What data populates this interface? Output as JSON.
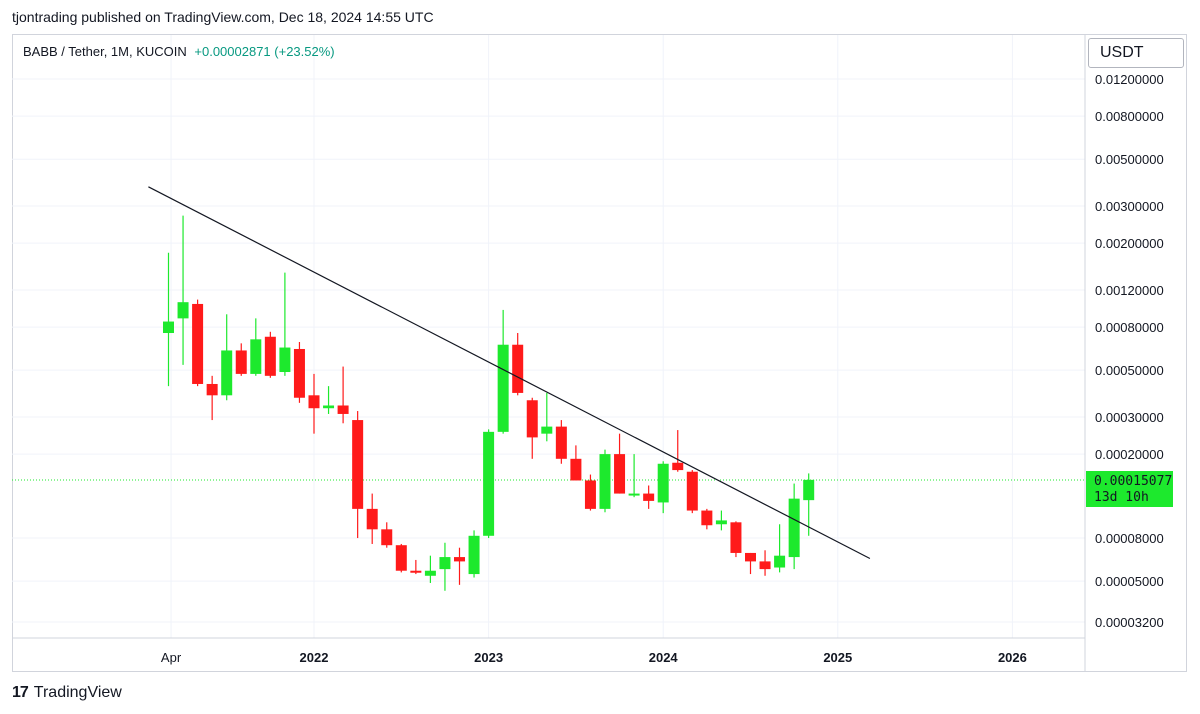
{
  "header": {
    "published_by": "tjontrading published on TradingView.com, Dec 18, 2024 14:55 UTC"
  },
  "legend": {
    "symbol": "BABB / Tether, 1M, KUCOIN",
    "change": "+0.00002871 (+23.52%)"
  },
  "currency_button": "USDT",
  "price_tag": {
    "price": "0.00015077",
    "countdown": "13d 10h"
  },
  "brand": {
    "logo_glyph": "17",
    "name": "TradingView"
  },
  "colors": {
    "up": "#1de92d",
    "down": "#ff1a1a",
    "grid": "#f0f3fa",
    "trendline": "#131722"
  },
  "chart_data": {
    "type": "candlestick",
    "scale": "log",
    "y_tick_labels": [
      "0.01200000",
      "0.00800000",
      "0.00500000",
      "0.00300000",
      "0.00200000",
      "0.00120000",
      "0.00080000",
      "0.00050000",
      "0.00030000",
      "0.00020000",
      "0.00008000",
      "0.00005000",
      "0.00003200"
    ],
    "x_tick_labels": [
      "Apr",
      "2022",
      "2023",
      "2024",
      "2025",
      "2026"
    ],
    "current_price": 0.00015077,
    "candles": [
      {
        "date": "2021-03",
        "open": 0.00075,
        "high": 0.0018,
        "low": 0.00042,
        "close": 0.00085
      },
      {
        "date": "2021-04",
        "open": 0.00088,
        "high": 0.0027,
        "low": 0.00053,
        "close": 0.00105
      },
      {
        "date": "2021-05",
        "open": 0.00103,
        "high": 0.00108,
        "low": 0.00042,
        "close": 0.00043
      },
      {
        "date": "2021-06",
        "open": 0.00043,
        "high": 0.00047,
        "low": 0.00029,
        "close": 0.00038
      },
      {
        "date": "2021-07",
        "open": 0.00038,
        "high": 0.00092,
        "low": 0.00036,
        "close": 0.00062
      },
      {
        "date": "2021-08",
        "open": 0.00062,
        "high": 0.00067,
        "low": 0.00047,
        "close": 0.00048
      },
      {
        "date": "2021-09",
        "open": 0.00048,
        "high": 0.00088,
        "low": 0.00047,
        "close": 0.0007
      },
      {
        "date": "2021-10",
        "open": 0.00072,
        "high": 0.00076,
        "low": 0.00046,
        "close": 0.00047
      },
      {
        "date": "2021-11",
        "open": 0.00049,
        "high": 0.00145,
        "low": 0.00047,
        "close": 0.00064
      },
      {
        "date": "2021-12",
        "open": 0.00063,
        "high": 0.00068,
        "low": 0.00035,
        "close": 0.00037
      },
      {
        "date": "2022-01",
        "open": 0.00038,
        "high": 0.00048,
        "low": 0.00025,
        "close": 0.00033
      },
      {
        "date": "2022-02",
        "open": 0.00033,
        "high": 0.00042,
        "low": 0.00031,
        "close": 0.00034
      },
      {
        "date": "2022-03",
        "open": 0.00034,
        "high": 0.00052,
        "low": 0.00028,
        "close": 0.00031
      },
      {
        "date": "2022-04",
        "open": 0.00029,
        "high": 0.00032,
        "low": 8e-05,
        "close": 0.00011
      },
      {
        "date": "2022-05",
        "open": 0.00011,
        "high": 0.00013,
        "low": 7.5e-05,
        "close": 8.8e-05
      },
      {
        "date": "2022-06",
        "open": 8.8e-05,
        "high": 9.5e-05,
        "low": 7.2e-05,
        "close": 7.4e-05
      },
      {
        "date": "2022-07",
        "open": 7.4e-05,
        "high": 7.5e-05,
        "low": 5.5e-05,
        "close": 5.6e-05
      },
      {
        "date": "2022-08",
        "open": 5.6e-05,
        "high": 6.3e-05,
        "low": 5.4e-05,
        "close": 5.5e-05
      },
      {
        "date": "2022-09",
        "open": 5.3e-05,
        "high": 6.6e-05,
        "low": 4.9e-05,
        "close": 5.6e-05
      },
      {
        "date": "2022-10",
        "open": 5.7e-05,
        "high": 7.6e-05,
        "low": 4.5e-05,
        "close": 6.5e-05
      },
      {
        "date": "2022-11",
        "open": 6.5e-05,
        "high": 7.2e-05,
        "low": 4.8e-05,
        "close": 6.2e-05
      },
      {
        "date": "2022-12",
        "open": 5.4e-05,
        "high": 8.7e-05,
        "low": 5.2e-05,
        "close": 8.2e-05
      },
      {
        "date": "2023-01",
        "open": 8.2e-05,
        "high": 0.000262,
        "low": 8e-05,
        "close": 0.000255
      },
      {
        "date": "2023-02",
        "open": 0.000255,
        "high": 0.000965,
        "low": 0.00025,
        "close": 0.00066
      },
      {
        "date": "2023-03",
        "open": 0.00066,
        "high": 0.00075,
        "low": 0.00038,
        "close": 0.00039
      },
      {
        "date": "2023-04",
        "open": 0.00036,
        "high": 0.00037,
        "low": 0.00019,
        "close": 0.00024
      },
      {
        "date": "2023-05",
        "open": 0.00025,
        "high": 0.00039,
        "low": 0.00023,
        "close": 0.00027
      },
      {
        "date": "2023-06",
        "open": 0.00027,
        "high": 0.00029,
        "low": 0.00018,
        "close": 0.00019
      },
      {
        "date": "2023-07",
        "open": 0.00019,
        "high": 0.00022,
        "low": 0.00015,
        "close": 0.00015
      },
      {
        "date": "2023-08",
        "open": 0.00015,
        "high": 0.00016,
        "low": 0.000108,
        "close": 0.00011
      },
      {
        "date": "2023-09",
        "open": 0.00011,
        "high": 0.00021,
        "low": 0.000106,
        "close": 0.0002
      },
      {
        "date": "2023-10",
        "open": 0.0002,
        "high": 0.00025,
        "low": 0.00013,
        "close": 0.00013
      },
      {
        "date": "2023-11",
        "open": 0.00013,
        "high": 0.0002,
        "low": 0.000125,
        "close": 0.00013
      },
      {
        "date": "2023-12",
        "open": 0.00013,
        "high": 0.000142,
        "low": 0.00011,
        "close": 0.00012
      },
      {
        "date": "2024-01",
        "open": 0.000118,
        "high": 0.000185,
        "low": 0.000105,
        "close": 0.00018
      },
      {
        "date": "2024-02",
        "open": 0.000182,
        "high": 0.00026,
        "low": 0.000165,
        "close": 0.000168
      },
      {
        "date": "2024-03",
        "open": 0.000165,
        "high": 0.000168,
        "low": 0.000105,
        "close": 0.000108
      },
      {
        "date": "2024-04",
        "open": 0.000108,
        "high": 0.00011,
        "low": 8.8e-05,
        "close": 9.2e-05
      },
      {
        "date": "2024-05",
        "open": 9.3e-05,
        "high": 0.000108,
        "low": 8.7e-05,
        "close": 9.7e-05
      },
      {
        "date": "2024-06",
        "open": 9.5e-05,
        "high": 9.6e-05,
        "low": 6.5e-05,
        "close": 6.8e-05
      },
      {
        "date": "2024-07",
        "open": 6.8e-05,
        "high": 6.8e-05,
        "low": 5.4e-05,
        "close": 6.2e-05
      },
      {
        "date": "2024-08",
        "open": 6.2e-05,
        "high": 7e-05,
        "low": 5.3e-05,
        "close": 5.7e-05
      },
      {
        "date": "2024-09",
        "open": 5.8e-05,
        "high": 9.3e-05,
        "low": 5.5e-05,
        "close": 6.6e-05
      },
      {
        "date": "2024-10",
        "open": 6.5e-05,
        "high": 0.000145,
        "low": 5.7e-05,
        "close": 0.000123
      },
      {
        "date": "2024-11",
        "open": 0.000121,
        "high": 0.000162,
        "low": 8.2e-05,
        "close": 0.000151
      }
    ],
    "trendline": {
      "start": {
        "date": "2021-01",
        "value": 0.0037
      },
      "end": {
        "date": "2025-03",
        "value": 6.4e-05
      }
    }
  }
}
